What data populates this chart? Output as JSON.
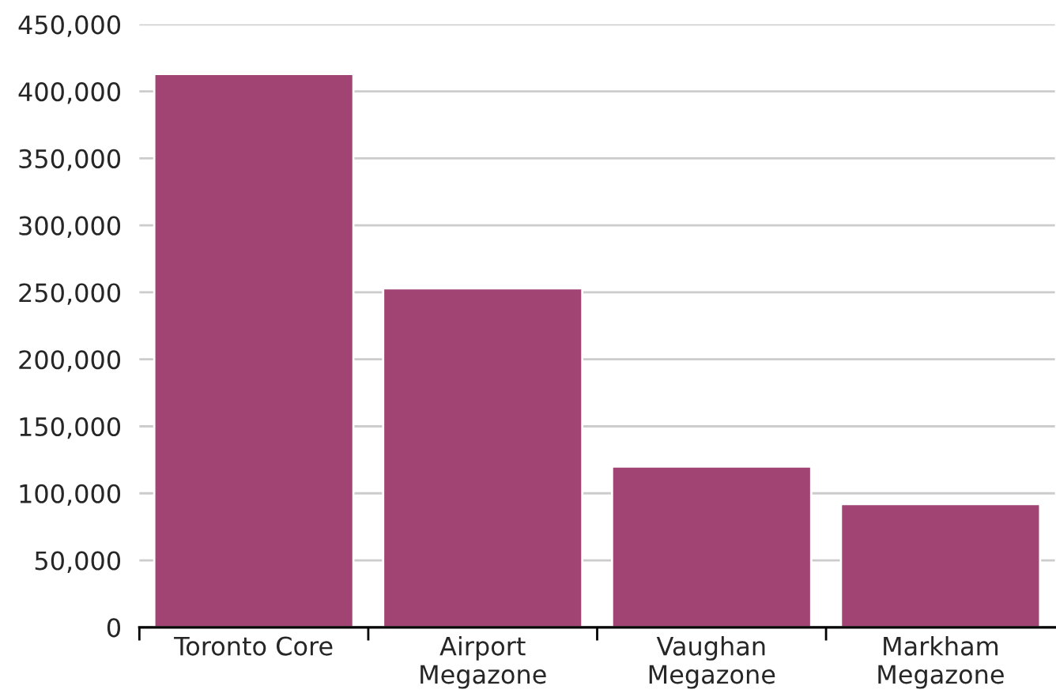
{
  "chart_data": {
    "type": "bar",
    "categories": [
      "Toronto Core",
      "Airport\nMegazone",
      "Vaughan\nMegazone",
      "Markham\nMegazone"
    ],
    "values": [
      413000,
      253000,
      120000,
      92000
    ],
    "color": "#a24473",
    "ylim": [
      0,
      450000
    ],
    "yticks": [
      {
        "value": 0,
        "label": "0"
      },
      {
        "value": 50000,
        "label": "50,000"
      },
      {
        "value": 100000,
        "label": "100,000"
      },
      {
        "value": 150000,
        "label": "150,000"
      },
      {
        "value": 200000,
        "label": "200,000"
      },
      {
        "value": 250000,
        "label": "250,000"
      },
      {
        "value": 300000,
        "label": "300,000"
      },
      {
        "value": 350000,
        "label": "350,000"
      },
      {
        "value": 400000,
        "label": "400,000"
      },
      {
        "value": 450000,
        "label": "450,000"
      }
    ],
    "grid": "y"
  }
}
